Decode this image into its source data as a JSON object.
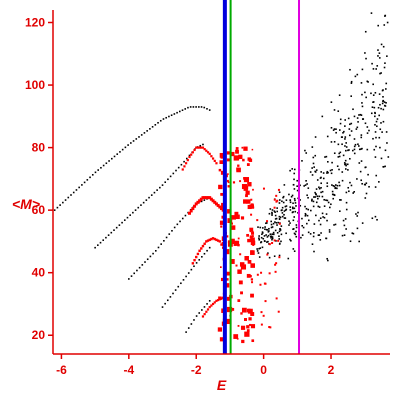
{
  "chart_data": {
    "type": "scatter",
    "xlabel": "E",
    "ylabel": "<M>",
    "xlim": [
      -6.25,
      3.75
    ],
    "ylim": [
      14,
      124
    ],
    "grid": false,
    "colors": {
      "axis": "#e00000",
      "black_points": "#000000",
      "red_points": "#ff0000",
      "blue_line": "#0000dd",
      "green_line": "#00aa00",
      "magenta_line": "#e000e0"
    },
    "x_ticks": [
      {
        "value": -6,
        "label": "-6"
      },
      {
        "value": -4,
        "label": "-4"
      },
      {
        "value": -2,
        "label": "-2"
      },
      {
        "value": 0,
        "label": "0"
      },
      {
        "value": 2,
        "label": "2"
      }
    ],
    "y_ticks": [
      {
        "value": 20,
        "label": "20"
      },
      {
        "value": 40,
        "label": "40"
      },
      {
        "value": 60,
        "label": "60"
      },
      {
        "value": 80,
        "label": "80"
      },
      {
        "value": 100,
        "label": "100"
      },
      {
        "value": 120,
        "label": "120"
      }
    ],
    "vertical_lines": [
      {
        "name": "blue",
        "x": -1.15,
        "color": "#0000dd",
        "width": 4
      },
      {
        "name": "green",
        "x": -0.98,
        "color": "#00aa00",
        "width": 2
      },
      {
        "name": "magenta",
        "x": 1.05,
        "color": "#e000e0",
        "width": 2
      }
    ],
    "black_curves": [
      {
        "x0": -6.2,
        "x1": -1.6,
        "points": [
          [
            -6.2,
            60
          ],
          [
            -5.0,
            72
          ],
          [
            -4.0,
            81
          ],
          [
            -3.0,
            89
          ],
          [
            -2.2,
            93
          ],
          [
            -1.8,
            93
          ],
          [
            -1.6,
            92
          ]
        ]
      },
      {
        "x0": -5.0,
        "x1": -1.8,
        "points": [
          [
            -5.0,
            48
          ],
          [
            -4.0,
            58
          ],
          [
            -3.0,
            68
          ],
          [
            -2.4,
            75
          ],
          [
            -2.0,
            80
          ],
          [
            -1.8,
            81
          ]
        ]
      },
      {
        "x0": -4.0,
        "x1": -1.6,
        "points": [
          [
            -4.0,
            38
          ],
          [
            -3.2,
            47
          ],
          [
            -2.6,
            55
          ],
          [
            -2.0,
            62
          ],
          [
            -1.6,
            64
          ]
        ]
      },
      {
        "x0": -3.0,
        "x1": -1.6,
        "points": [
          [
            -3.0,
            29
          ],
          [
            -2.5,
            36
          ],
          [
            -2.0,
            43
          ],
          [
            -1.6,
            48
          ]
        ]
      },
      {
        "x0": -2.3,
        "x1": -1.6,
        "points": [
          [
            -2.3,
            21
          ],
          [
            -2.0,
            26
          ],
          [
            -1.6,
            31
          ]
        ]
      }
    ],
    "red_curves": [
      {
        "x0": -2.4,
        "x1": -1.4,
        "size": 2.2,
        "points": [
          [
            -2.4,
            73
          ],
          [
            -2.2,
            77
          ],
          [
            -2.0,
            80
          ],
          [
            -1.8,
            80
          ],
          [
            -1.6,
            78
          ],
          [
            -1.4,
            75
          ]
        ]
      },
      {
        "x0": -2.2,
        "x1": -1.2,
        "size": 3.0,
        "points": [
          [
            -2.2,
            59
          ],
          [
            -2.0,
            62
          ],
          [
            -1.8,
            64
          ],
          [
            -1.6,
            64
          ],
          [
            -1.4,
            62
          ],
          [
            -1.2,
            60
          ]
        ]
      },
      {
        "x0": -2.1,
        "x1": -1.2,
        "size": 2.4,
        "points": [
          [
            -2.1,
            43
          ],
          [
            -1.9,
            47
          ],
          [
            -1.7,
            50
          ],
          [
            -1.5,
            51
          ],
          [
            -1.3,
            50
          ],
          [
            -1.2,
            48
          ]
        ]
      },
      {
        "x0": -1.8,
        "x1": -1.2,
        "size": 2.2,
        "points": [
          [
            -1.8,
            26
          ],
          [
            -1.6,
            29
          ],
          [
            -1.4,
            31
          ],
          [
            -1.2,
            32
          ]
        ]
      }
    ]
  }
}
